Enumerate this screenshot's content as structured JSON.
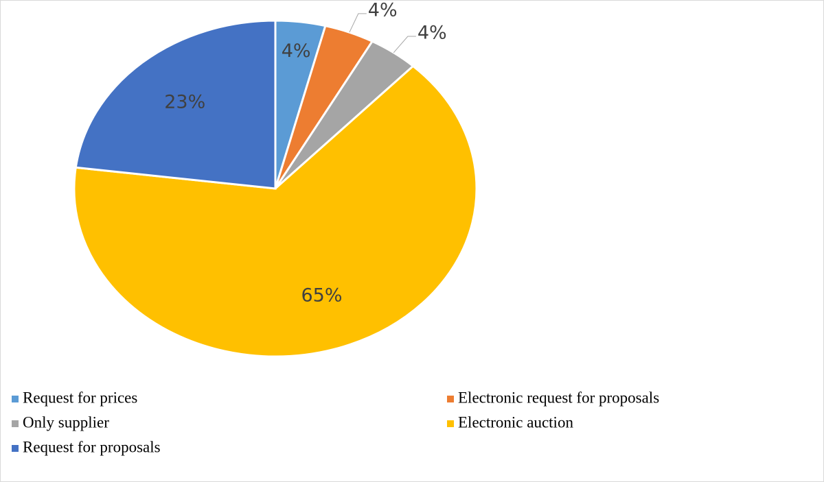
{
  "chart_data": {
    "type": "pie",
    "categories": [
      "Request for prices",
      "Electronic request for proposals",
      "Only supplier",
      "Electronic auction",
      "Request for proposals"
    ],
    "values": [
      4,
      4,
      4,
      65,
      23
    ],
    "value_labels": [
      "4%",
      "4%",
      "4%",
      "65%",
      "23%"
    ],
    "colors": [
      "#5b9bd5",
      "#ed7d31",
      "#a5a5a5",
      "#ffc000",
      "#4472c4"
    ],
    "legend": "bottom"
  }
}
